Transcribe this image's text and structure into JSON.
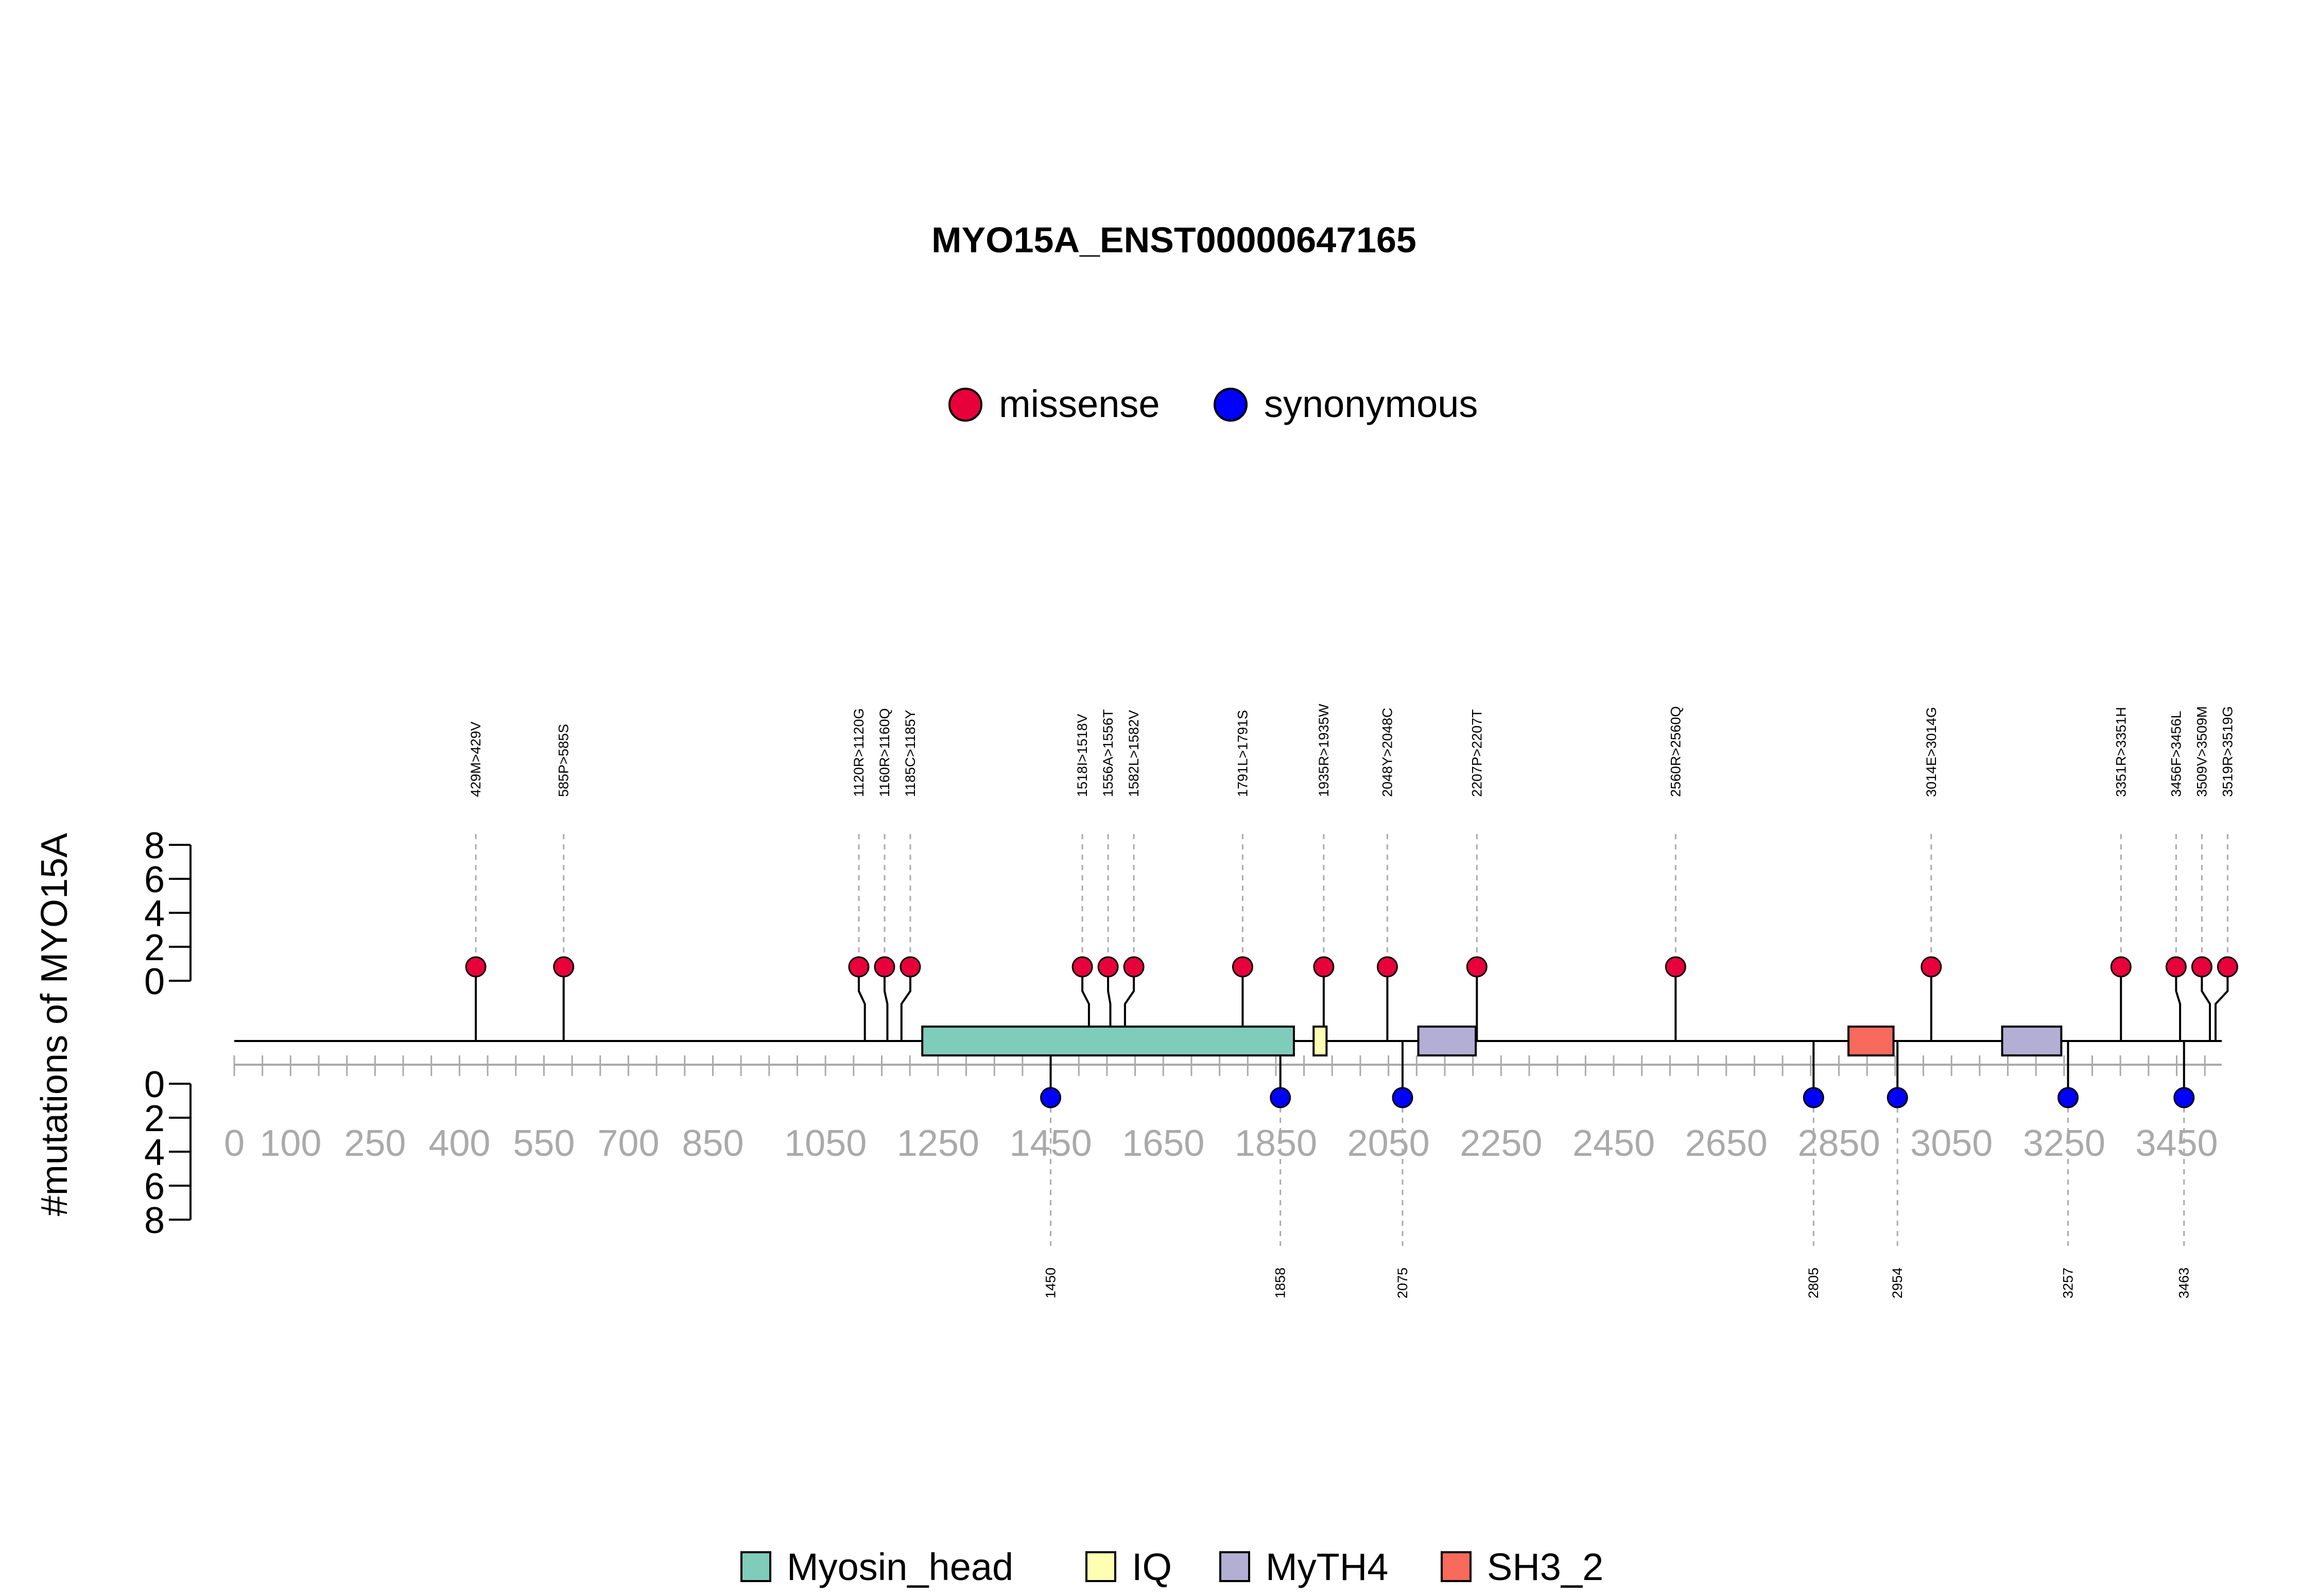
{
  "chart_data": {
    "type": "lollipop",
    "title": "MYO15A_ENST00000647165",
    "ylabel": "#mutations of MYO15A",
    "y_ticks": [
      0,
      2,
      4,
      6,
      8
    ],
    "ylim": [
      0,
      8
    ],
    "x_ticks": [
      0,
      100,
      250,
      400,
      550,
      700,
      850,
      1050,
      1250,
      1450,
      1650,
      1850,
      2050,
      2250,
      2450,
      2650,
      2850,
      3050,
      3250,
      3450
    ],
    "xlim": [
      0,
      3530
    ],
    "legend_top": [
      {
        "label": "missense",
        "color": "#e8003b"
      },
      {
        "label": "synonymous",
        "color": "#0000ff"
      }
    ],
    "legend_bottom": [
      {
        "label": "Myosin_head",
        "color": "#7fccbb"
      },
      {
        "label": "IQ",
        "color": "#ffffb3"
      },
      {
        "label": "MyTH4",
        "color": "#b3aed4"
      },
      {
        "label": "SH3_2",
        "color": "#f86a5c"
      }
    ],
    "domains": [
      {
        "name": "Myosin_head",
        "start": 1222,
        "end": 1882,
        "color": "#7fccbb"
      },
      {
        "name": "IQ",
        "start": 1917,
        "end": 1940,
        "color": "#ffffb3"
      },
      {
        "name": "MyTH4",
        "start": 2103,
        "end": 2205,
        "color": "#b3aed4"
      },
      {
        "name": "MyTH4",
        "start": 3140,
        "end": 3245,
        "color": "#b3aed4"
      },
      {
        "name": "SH3_2",
        "start": 2867,
        "end": 2947,
        "color": "#f86a5c"
      }
    ],
    "missense": [
      {
        "pos": 429,
        "label": "429M>429V",
        "count": 1
      },
      {
        "pos": 585,
        "label": "585P>585S",
        "count": 1
      },
      {
        "pos": 1120,
        "label": "1120R>1120G",
        "count": 1
      },
      {
        "pos": 1160,
        "label": "1160R>1160Q",
        "count": 1
      },
      {
        "pos": 1185,
        "label": "1185C>1185Y",
        "count": 1
      },
      {
        "pos": 1518,
        "label": "1518I>1518V",
        "count": 1
      },
      {
        "pos": 1556,
        "label": "1556A>1556T",
        "count": 1
      },
      {
        "pos": 1582,
        "label": "1582L>1582V",
        "count": 1
      },
      {
        "pos": 1791,
        "label": "1791L>1791S",
        "count": 1
      },
      {
        "pos": 1935,
        "label": "1935R>1935W",
        "count": 1
      },
      {
        "pos": 2048,
        "label": "2048Y>2048C",
        "count": 1
      },
      {
        "pos": 2207,
        "label": "2207P>2207T",
        "count": 1
      },
      {
        "pos": 2560,
        "label": "2560R>2560Q",
        "count": 1
      },
      {
        "pos": 3014,
        "label": "3014E>3014G",
        "count": 1
      },
      {
        "pos": 3351,
        "label": "3351R>3351H",
        "count": 1
      },
      {
        "pos": 3456,
        "label": "3456F>3456L",
        "count": 1
      },
      {
        "pos": 3509,
        "label": "3509V>3509M",
        "count": 1
      },
      {
        "pos": 3519,
        "label": "3519R>3519G",
        "count": 1
      }
    ],
    "synonymous": [
      {
        "pos": 1450,
        "label": "1450",
        "count": 1
      },
      {
        "pos": 1858,
        "label": "1858",
        "count": 1
      },
      {
        "pos": 2075,
        "label": "2075",
        "count": 1
      },
      {
        "pos": 2805,
        "label": "2805",
        "count": 1
      },
      {
        "pos": 2954,
        "label": "2954",
        "count": 1
      },
      {
        "pos": 3257,
        "label": "3257",
        "count": 1
      },
      {
        "pos": 3463,
        "label": "3463",
        "count": 1
      }
    ]
  }
}
